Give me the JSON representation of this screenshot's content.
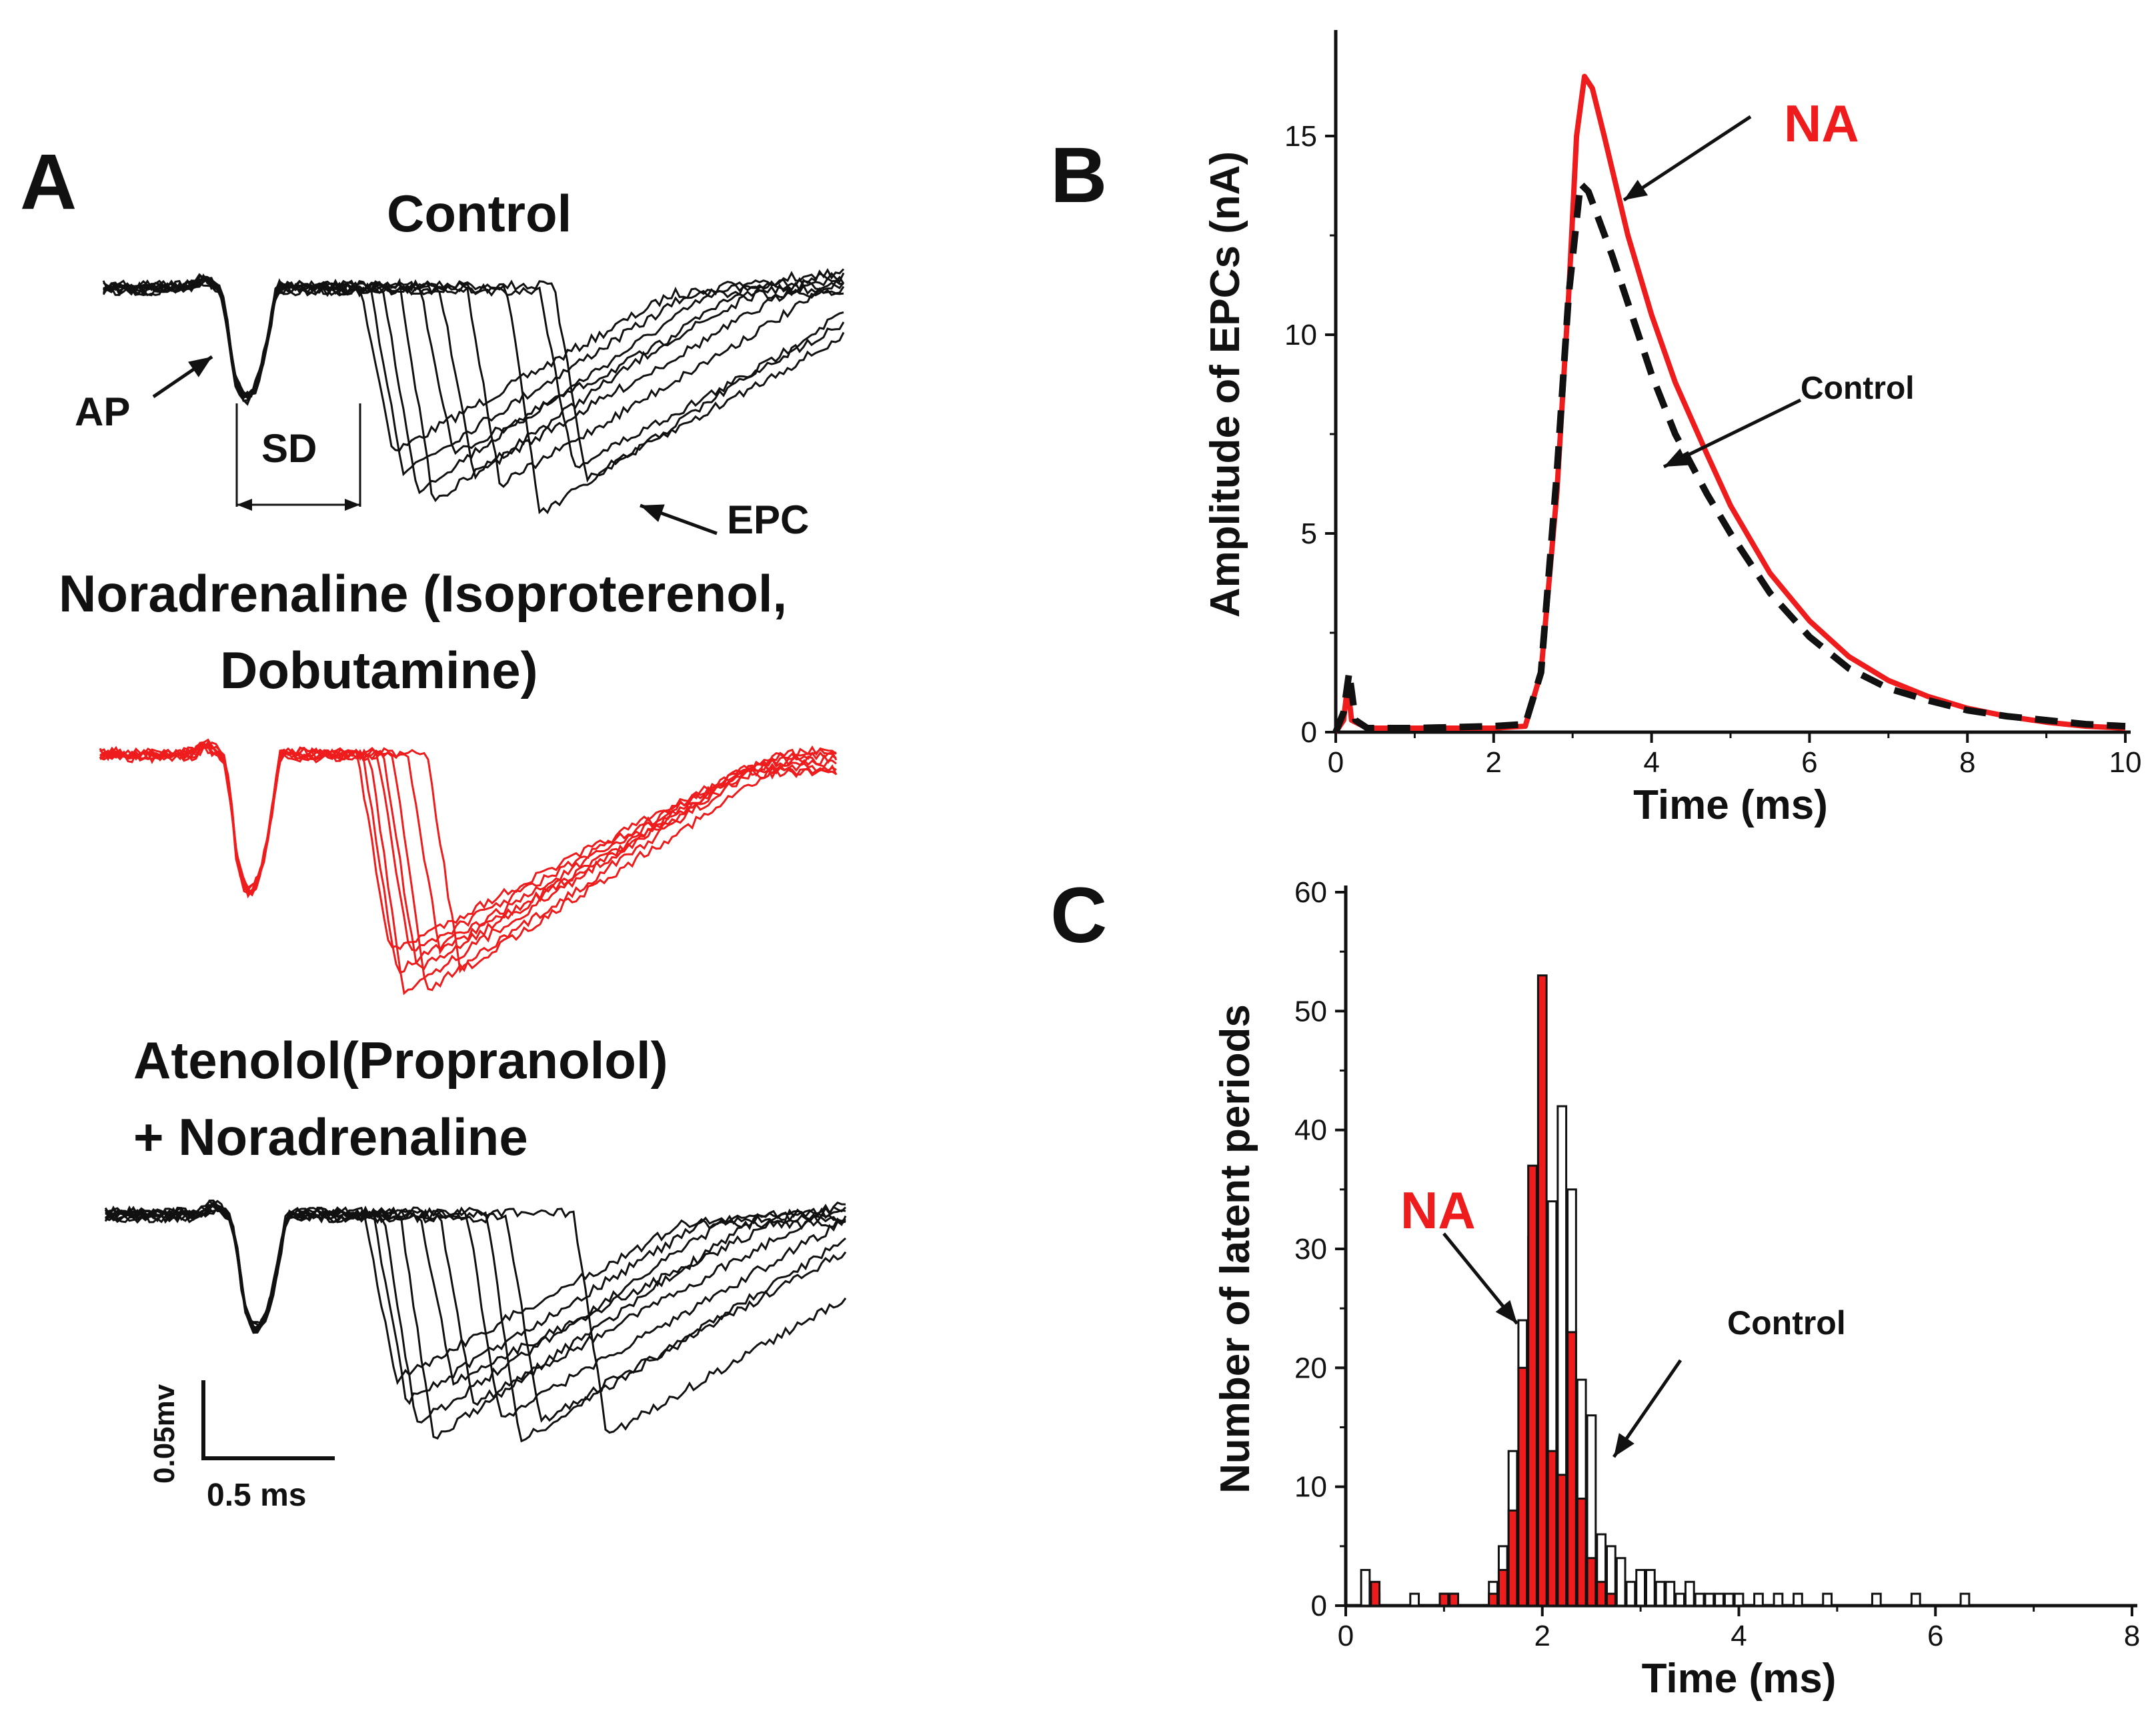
{
  "panel_a": {
    "letter": "A",
    "control_title": "Control",
    "noradrenaline_line1": "Noradrenaline (Isoproterenol,",
    "noradrenaline_line2": "Dobutamine)",
    "atenolol_line1": "Atenolol(Propranolol)",
    "atenolol_line2": "+ Noradrenaline",
    "ap_label": "AP",
    "sd_label": "SD",
    "epc_label": "EPC",
    "scale_v": "0.05mv",
    "scale_t": "0.5 ms",
    "colors": {
      "control": "#111111",
      "noradrenaline": "#ee1c1c",
      "atenolol": "#111111"
    }
  },
  "panel_b": {
    "letter": "B",
    "na_label": "NA",
    "control_label": "Control"
  },
  "panel_c": {
    "letter": "C",
    "na_label": "NA",
    "control_label": "Control"
  },
  "chart_data": [
    {
      "id": "B",
      "type": "line",
      "title": "",
      "xlabel": "Time (ms)",
      "ylabel": "Amplitude of EPCs (nA)",
      "xlim": [
        0,
        10
      ],
      "ylim": [
        0,
        17.5
      ],
      "xticks": [
        0,
        2,
        4,
        6,
        8,
        10
      ],
      "yticks": [
        0,
        5,
        10,
        15
      ],
      "grid": false,
      "series": [
        {
          "name": "NA",
          "color": "#ee1c1c",
          "style": "solid",
          "points": [
            [
              0,
              0
            ],
            [
              0.1,
              0.3
            ],
            [
              0.15,
              1.2
            ],
            [
              0.2,
              0.3
            ],
            [
              0.4,
              0.1
            ],
            [
              1.0,
              0.1
            ],
            [
              2.0,
              0.1
            ],
            [
              2.4,
              0.15
            ],
            [
              2.6,
              1.5
            ],
            [
              2.8,
              6.0
            ],
            [
              2.95,
              11.0
            ],
            [
              3.05,
              15.0
            ],
            [
              3.15,
              16.5
            ],
            [
              3.25,
              16.2
            ],
            [
              3.4,
              15.0
            ],
            [
              3.7,
              12.5
            ],
            [
              4.0,
              10.5
            ],
            [
              4.3,
              8.8
            ],
            [
              4.7,
              7.0
            ],
            [
              5.0,
              5.7
            ],
            [
              5.5,
              4.0
            ],
            [
              6.0,
              2.8
            ],
            [
              6.5,
              1.9
            ],
            [
              7.0,
              1.3
            ],
            [
              7.5,
              0.9
            ],
            [
              8.0,
              0.6
            ],
            [
              8.5,
              0.4
            ],
            [
              9.0,
              0.25
            ],
            [
              9.5,
              0.15
            ],
            [
              10.0,
              0.1
            ]
          ]
        },
        {
          "name": "Control",
          "color": "#111111",
          "style": "dashed",
          "points": [
            [
              0,
              0
            ],
            [
              0.1,
              0.5
            ],
            [
              0.17,
              1.5
            ],
            [
              0.25,
              0.3
            ],
            [
              0.4,
              0.1
            ],
            [
              1.0,
              0.1
            ],
            [
              2.0,
              0.15
            ],
            [
              2.4,
              0.2
            ],
            [
              2.6,
              1.5
            ],
            [
              2.8,
              6.5
            ],
            [
              2.95,
              11.0
            ],
            [
              3.1,
              13.8
            ],
            [
              3.2,
              13.6
            ],
            [
              3.5,
              12.0
            ],
            [
              3.8,
              10.2
            ],
            [
              4.0,
              9.0
            ],
            [
              4.3,
              7.5
            ],
            [
              4.7,
              6.0
            ],
            [
              5.0,
              5.0
            ],
            [
              5.5,
              3.5
            ],
            [
              6.0,
              2.4
            ],
            [
              6.5,
              1.6
            ],
            [
              7.0,
              1.1
            ],
            [
              7.5,
              0.8
            ],
            [
              8.0,
              0.55
            ],
            [
              8.5,
              0.4
            ],
            [
              9.0,
              0.3
            ],
            [
              9.5,
              0.2
            ],
            [
              10.0,
              0.15
            ]
          ]
        }
      ]
    },
    {
      "id": "C",
      "type": "bar",
      "title": "",
      "xlabel": "Time (ms)",
      "ylabel": "Number of latent periods",
      "xlim": [
        0,
        8
      ],
      "ylim": [
        0,
        60
      ],
      "xticks": [
        0,
        2,
        4,
        6,
        8
      ],
      "yticks": [
        0,
        10,
        20,
        30,
        40,
        50,
        60
      ],
      "grid": false,
      "bin_width": 0.1,
      "series": [
        {
          "name": "Control",
          "color": "#ffffff",
          "x": [
            0.2,
            0.3,
            0.7,
            1.0,
            1.1,
            1.5,
            1.6,
            1.7,
            1.8,
            1.9,
            2.0,
            2.1,
            2.2,
            2.3,
            2.4,
            2.5,
            2.6,
            2.7,
            2.8,
            2.9,
            3.0,
            3.1,
            3.2,
            3.3,
            3.4,
            3.5,
            3.6,
            3.7,
            3.8,
            3.9,
            4.0,
            4.2,
            4.4,
            4.6,
            4.9,
            5.4,
            5.8,
            6.3
          ],
          "values": [
            3,
            1,
            1,
            1,
            1,
            2,
            5,
            13,
            24,
            31,
            33,
            34,
            42,
            35,
            19,
            16,
            6,
            5,
            4,
            2,
            3,
            3,
            2,
            2,
            1,
            2,
            1,
            1,
            1,
            1,
            1,
            1,
            1,
            1,
            1,
            1,
            1,
            1
          ]
        },
        {
          "name": "NA",
          "color": "#ee1c1c",
          "x": [
            0.3,
            1.0,
            1.1,
            1.5,
            1.6,
            1.7,
            1.8,
            1.9,
            2.0,
            2.1,
            2.2,
            2.3,
            2.4,
            2.5,
            2.6,
            2.7
          ],
          "values": [
            2,
            1,
            1,
            1,
            3,
            8,
            20,
            37,
            53,
            13,
            11,
            23,
            9,
            4,
            2,
            1
          ]
        }
      ]
    }
  ]
}
